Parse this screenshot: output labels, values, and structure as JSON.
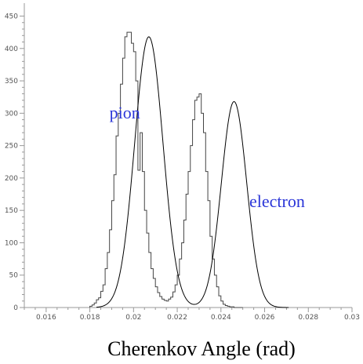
{
  "chart_data": {
    "type": "histogram",
    "title": "",
    "xlabel": "Cherenkov Angle (rad)",
    "ylabel": "",
    "xlim": [
      0.015,
      0.03
    ],
    "ylim": [
      0,
      470
    ],
    "x_ticks": [
      0.016,
      0.018,
      0.02,
      0.022,
      0.024,
      0.026,
      0.028,
      0.03
    ],
    "x_tick_labels": [
      "0.016",
      "0.018",
      "0.02",
      "0.022",
      "0.024",
      "0.026",
      "0.028",
      "0.03"
    ],
    "y_ticks": [
      0,
      50,
      100,
      150,
      200,
      250,
      300,
      350,
      400,
      450
    ],
    "y_tick_labels": [
      "0",
      "50",
      "100",
      "150",
      "200",
      "250",
      "300",
      "350",
      "400",
      "450"
    ],
    "grid": false,
    "legend": "none",
    "bin_edges_start": 0.018,
    "bin_width": 0.0001,
    "series": [
      {
        "kind": "histogram",
        "values": [
          2,
          4,
          7,
          12,
          15,
          25,
          35,
          60,
          85,
          120,
          165,
          205,
          265,
          300,
          345,
          385,
          418,
          425,
          425,
          408,
          395,
          350,
          212,
          270,
          210,
          150,
          115,
          85,
          60,
          45,
          32,
          23,
          17,
          13,
          11,
          10,
          13,
          16,
          24,
          35,
          50,
          75,
          100,
          135,
          175,
          210,
          250,
          290,
          320,
          325,
          330,
          300,
          270,
          210,
          165,
          110,
          75,
          50,
          32,
          18,
          10,
          5,
          3,
          2,
          1,
          1,
          0,
          0,
          0,
          0
        ]
      },
      {
        "kind": "fit",
        "components": [
          {
            "label": "pion",
            "amplitude": 418,
            "mean": 0.0207,
            "sigma": 0.00065
          },
          {
            "label": "electron",
            "amplitude": 318,
            "mean": 0.0246,
            "sigma": 0.00058
          }
        ]
      }
    ],
    "annotations": [
      {
        "text": "pion",
        "x": 0.0189,
        "y": 292
      },
      {
        "text": "electron",
        "x": 0.0253,
        "y": 155
      }
    ],
    "colors": {
      "axis": "#999999",
      "histogram": "#444444",
      "fit": "#000000",
      "annotation": "#2a35d8"
    }
  }
}
